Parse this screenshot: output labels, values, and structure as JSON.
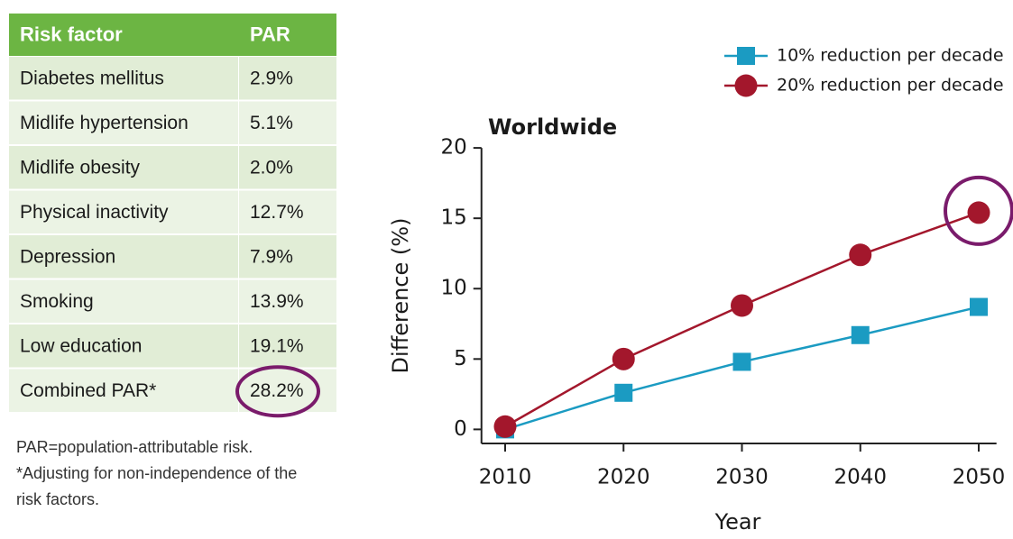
{
  "table": {
    "header": [
      "Risk factor",
      "PAR"
    ],
    "rows": [
      [
        "Diabetes mellitus",
        "2.9%"
      ],
      [
        "Midlife hypertension",
        "5.1%"
      ],
      [
        "Midlife obesity",
        "2.0%"
      ],
      [
        "Physical inactivity",
        "12.7%"
      ],
      [
        "Depression",
        "7.9%"
      ],
      [
        "Smoking",
        "13.9%"
      ],
      [
        "Low education",
        "19.1%"
      ],
      [
        "Combined PAR*",
        "28.2%"
      ]
    ],
    "notes": [
      "PAR=population-attributable risk.",
      "*Adjusting for non-independence of the",
      "risk factors."
    ]
  },
  "chart_data": {
    "type": "line",
    "title": "Worldwide",
    "x_label": "Year",
    "y_label": "Difference (%)",
    "x": [
      2010,
      2020,
      2030,
      2040,
      2050
    ],
    "series": [
      {
        "name": "10% reduction per decade",
        "color": "#1b9bc2",
        "marker": "square",
        "values": [
          0,
          2.6,
          4.8,
          6.7,
          8.7
        ]
      },
      {
        "name": "20% reduction per decade",
        "color": "#a3172c",
        "marker": "circle",
        "values": [
          0.2,
          5.0,
          8.8,
          12.4,
          15.4
        ]
      }
    ],
    "xlim": [
      2008,
      2051.5
    ],
    "ylim": [
      -1,
      20
    ],
    "xticks": [
      2010,
      2020,
      2030,
      2040,
      2050
    ],
    "yticks": [
      0,
      5,
      10,
      15,
      20
    ],
    "grid": false,
    "legend": "top-right"
  }
}
